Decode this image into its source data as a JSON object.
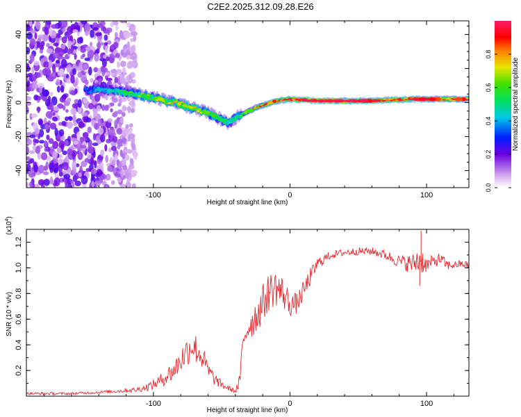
{
  "title": "C2E2.2025.312.09.28.E26",
  "colors": {
    "snr_line": "#e8262b",
    "axis": "#000000"
  },
  "chart_data": [
    {
      "type": "heatmap",
      "name": "spectrogram",
      "xlabel": "Height of straight line (km)",
      "ylabel": "Frequency (Hz)",
      "xlim": [
        -193,
        131
      ],
      "ylim": [
        -50,
        48
      ],
      "xticks": [
        -100,
        0,
        100
      ],
      "xtick_labels": [
        "-100",
        "0",
        "100"
      ],
      "yticks": [
        -40,
        -20,
        0,
        20,
        40
      ],
      "ytick_labels": [
        "-40",
        "-20",
        "0",
        "20",
        "40"
      ],
      "noise_region_x": [
        -193,
        -113
      ],
      "ridge": {
        "x": [
          -193,
          -150,
          -140,
          -120,
          -100,
          -80,
          -60,
          -45,
          -38,
          -25,
          -10,
          0,
          20,
          60,
          90,
          131
        ],
        "freq_hz": [
          7,
          7,
          8,
          6,
          3,
          -1,
          -6,
          -12,
          -8,
          -3,
          1,
          2,
          1,
          1,
          2,
          2
        ],
        "amplitude": [
          0.25,
          0.3,
          0.35,
          0.45,
          0.55,
          0.6,
          0.55,
          0.4,
          0.45,
          0.65,
          0.75,
          0.85,
          0.95,
          0.85,
          0.8,
          0.75
        ]
      },
      "colorbar": {
        "label": "Normalized spectral amplitude",
        "range": [
          0,
          1
        ],
        "ticks": [
          0,
          0.2,
          0.4,
          0.6,
          0.8
        ],
        "tick_labels": [
          "0.0",
          "0.2",
          "0.4",
          "0.6",
          "0.8"
        ]
      }
    },
    {
      "type": "line",
      "name": "snr",
      "xlabel": "Height of straight line (km)",
      "ylabel": "SNR (10 * v/v)",
      "exponent_label": "(x10",
      "exponent_power": "4",
      "exponent_close": ")",
      "xlim": [
        -193,
        131
      ],
      "ylim": [
        0,
        1.3
      ],
      "xticks": [
        -100,
        0,
        100
      ],
      "xtick_labels": [
        "-100",
        "0",
        "100"
      ],
      "yticks": [
        0.2,
        0.4,
        0.6,
        0.8,
        1.0,
        1.2
      ],
      "ytick_labels": [
        "0.2",
        "0.4",
        "0.6",
        "0.8",
        "1.0",
        "1.2"
      ],
      "series": [
        {
          "name": "SNR",
          "x": [
            -193,
            -175,
            -160,
            -140,
            -125,
            -112,
            -105,
            -100,
            -95,
            -90,
            -85,
            -80,
            -76,
            -72,
            -68,
            -64,
            -60,
            -55,
            -50,
            -45,
            -40,
            -37,
            -35,
            -33,
            -30,
            -25,
            -20,
            -15,
            -10,
            -5,
            0,
            5,
            10,
            15,
            20,
            25,
            30,
            40,
            50,
            60,
            70,
            80,
            90,
            95,
            100,
            105,
            110,
            115,
            120,
            125,
            131
          ],
          "y": [
            0.02,
            0.02,
            0.02,
            0.03,
            0.04,
            0.05,
            0.07,
            0.09,
            0.12,
            0.16,
            0.2,
            0.28,
            0.34,
            0.4,
            0.36,
            0.3,
            0.2,
            0.13,
            0.09,
            0.06,
            0.04,
            0.1,
            0.35,
            0.48,
            0.55,
            0.62,
            0.72,
            0.82,
            0.85,
            0.8,
            0.72,
            0.72,
            0.82,
            0.93,
            1.03,
            1.07,
            1.1,
            1.12,
            1.13,
            1.13,
            1.1,
            1.05,
            1.03,
            1.07,
            1.02,
            1.05,
            1.07,
            1.02,
            1.02,
            1.03,
            1.02
          ],
          "noise": [
            0.01,
            0.01,
            0.01,
            0.01,
            0.015,
            0.02,
            0.03,
            0.04,
            0.05,
            0.07,
            0.08,
            0.1,
            0.12,
            0.12,
            0.12,
            0.1,
            0.07,
            0.05,
            0.03,
            0.02,
            0.02,
            0.06,
            0.08,
            0.1,
            0.12,
            0.14,
            0.15,
            0.15,
            0.15,
            0.13,
            0.1,
            0.08,
            0.08,
            0.07,
            0.05,
            0.04,
            0.03,
            0.03,
            0.03,
            0.03,
            0.04,
            0.05,
            0.08,
            0.12,
            0.06,
            0.05,
            0.05,
            0.04,
            0.03,
            0.03,
            0.03
          ],
          "spikes": [
            {
              "x": 96,
              "y": 1.29
            },
            {
              "x": 95,
              "y": 0.86
            }
          ]
        }
      ]
    }
  ]
}
